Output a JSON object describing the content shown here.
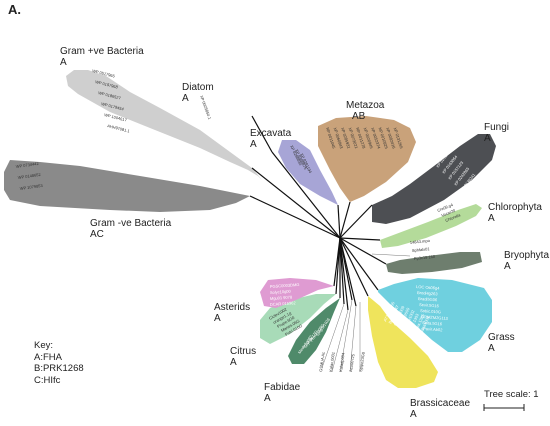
{
  "panel_label": "A.",
  "clades": {
    "gram_pos": {
      "name": "Gram +ve Bacteria",
      "tag": "A"
    },
    "gram_neg": {
      "name": "Gram -ve Bacteria",
      "tag": "AC"
    },
    "diatom": {
      "name": "Diatom",
      "tag": "A"
    },
    "excavata": {
      "name": "Excavata",
      "tag": "A"
    },
    "metazoa": {
      "name": "Metazoa",
      "tag": "AB"
    },
    "fungi": {
      "name": "Fungi",
      "tag": "A"
    },
    "chlorophyta": {
      "name": "Chlorophyta",
      "tag": "A"
    },
    "bryophyta": {
      "name": "Bryophyta",
      "tag": "A"
    },
    "grass": {
      "name": "Grass",
      "tag": "A"
    },
    "brassicaceae": {
      "name": "Brassicaceae",
      "tag": "A"
    },
    "fabidae": {
      "name": "Fabidae",
      "tag": "A"
    },
    "citrus": {
      "name": "Citrus",
      "tag": "A"
    },
    "asterids": {
      "name": "Asterids",
      "tag": "A"
    }
  },
  "key": {
    "title": "Key:",
    "items": [
      "A:FHA",
      "B:PRK1268",
      "C:HIfc"
    ]
  },
  "tree_scale": "Tree scale: 1",
  "colors": {
    "gram_pos": "#cfcfcf",
    "gram_neg": "#8a8a8a",
    "excavata": "#a7a5d6",
    "metazoa": "#c9a27a",
    "fungi": "#4d4f53",
    "chlorophyta": "#b4db9a",
    "bryophyta": "#6e7e6e",
    "grass": "#6fd0df",
    "brassicaceae": "#efe45c",
    "fabidae": "#4f8a6a",
    "citrus": "#a8dbb8",
    "asterids": "#df9bd2"
  },
  "leaves": {
    "gram_pos": [
      "WP 0517966",
      "WP 0197968",
      "WP 0186527",
      "WP 0179454",
      "WP 1004617",
      "AHH97081.1"
    ],
    "gram_neg": [
      "WP 0734442",
      "WP 0148652",
      "WP 1079853"
    ],
    "diatom": [
      "XP 0025854.1"
    ],
    "excavata": [
      "XP 0280034",
      "XP 0300875",
      "XP 0281194"
    ],
    "metazoa": [
      "NP 0011045",
      "XP 0060843",
      "XP 0285931",
      "XP 0073021",
      "NP 0011278",
      "XP 0020945",
      "XP 0052374",
      "NP 0010925",
      "XP 0082416",
      "XP 0131265"
    ],
    "fungi": [
      "XP 0027908",
      "XP 0236433",
      "XP 0183461",
      "XP 0251794",
      "XP 0163054",
      "XP 0157123",
      "XP 0242865",
      "XP 0136241"
    ],
    "chlorophyta": [
      "Cre09.g4",
      "Vocar20",
      "Chlorella"
    ],
    "bryophyta": [
      "14843.mpo",
      "Sphfalx01",
      "Pp3c19 160"
    ],
    "grass": [
      "LOC Os06g4",
      "Brodi4g263",
      "Bradi5G06",
      "Sevir.5G16",
      "Sobic.010G",
      "GRMZM2G113",
      "Seita.5G16",
      "Pavir.Ab02"
    ],
    "brassicaceae": [
      "AT1G34355",
      "Bra038547",
      "Carub.0009",
      "AL1G32500",
      "Thhalv1002",
      "Bostr.1303",
      "Cagra.1385",
      "Esalsa1004"
    ],
    "fabidae": [
      "Medtr2g082",
      "Glyma.17G",
      "Phvul.009G",
      "Lj4g3v1926"
    ],
    "citrus": [
      "Ciclev1002",
      "orange1.1g",
      "Prupe.6G0",
      "Manes.05G",
      "Potri.010G"
    ],
    "asterids": [
      "PGSC0003DMG",
      "Solyc10g00",
      "Mgu01 9078",
      "DCAR 015962"
    ],
    "center": [
      "GSMUA Ac",
      "Kalax.0031",
      "Kaladp004",
      "Aco00725",
      "Spipo23G0"
    ]
  }
}
